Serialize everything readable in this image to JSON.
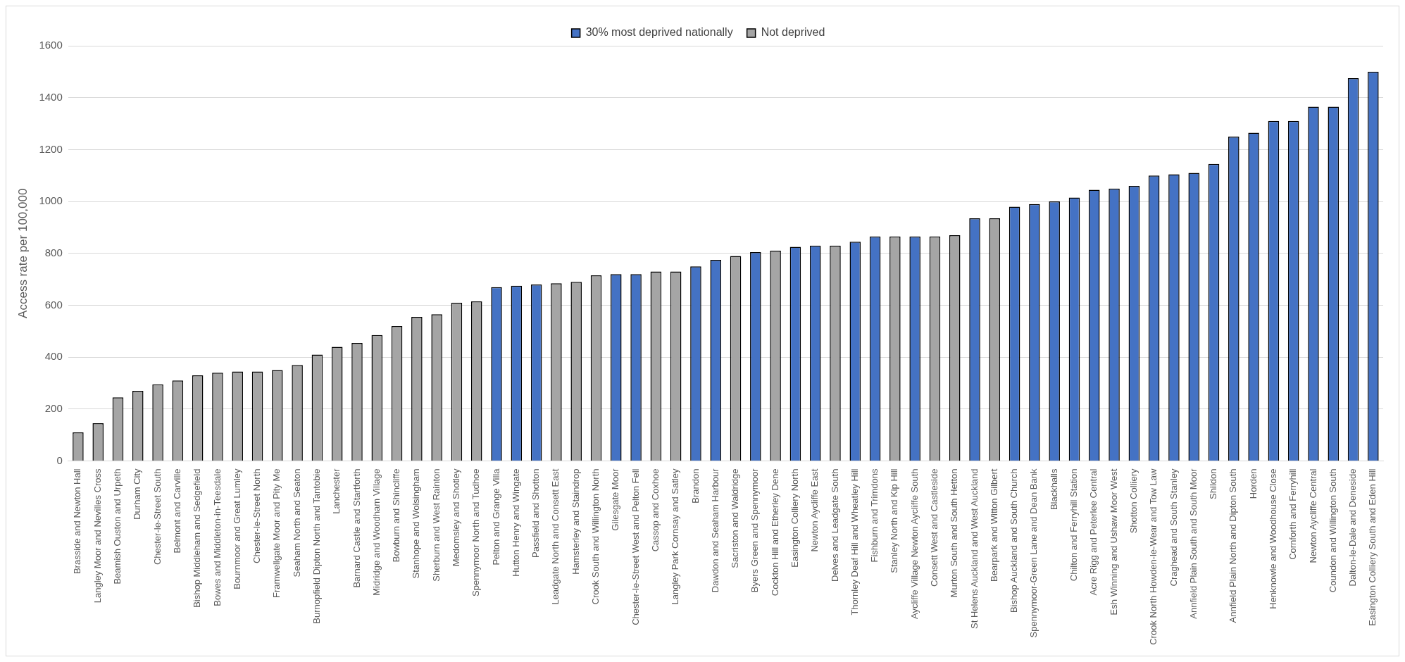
{
  "chart_data": {
    "type": "bar",
    "ylabel": "Access rate per 100,000",
    "categories": [
      "Brasside and Newton Hall",
      "Langley Moor and Nevilles Cross",
      "Beamish Ouston and Urpeth",
      "Durham City",
      "Chester-le-Street South",
      "Belmont and Carville",
      "Bishop Middleham and Sedgefield",
      "Bowes and Middleton-in-Teesdale",
      "Bournmoor and Great Lumley",
      "Chester-le-Street North",
      "Framwellgate Moor and Pity Me",
      "Seaham North and Seaton",
      "Burnopfield Dipton North and Tantobie",
      "Lanchester",
      "Barnard Castle and Startforth",
      "Midridge and Woodham Village",
      "Bowburn and Shincliffe",
      "Stanhope and Wolsingham",
      "Sherburn and West Rainton",
      "Medomsley and Shotley",
      "Spennymoor North and Tudhoe",
      "Pelton and Grange Villa",
      "Hutton Henry and Wingate",
      "Passfield and Shotton",
      "Leadgate North and Consett East",
      "Hamsterley and Staindrop",
      "Crook South and Willington North",
      "Gilesgate Moor",
      "Chester-le-Street West and Pelton Fell",
      "Cassop and Coxhoe",
      "Langley Park Cornsay and Satley",
      "Brandon",
      "Dawdon and Seaham Harbour",
      "Sacriston and Waldridge",
      "Byers Green and Spennymoor",
      "Cockton Hill and Etherley Dene",
      "Easington Colliery North",
      "Newton Aycliffe East",
      "Delves and Leadgate South",
      "Thornley Deaf Hill and Wheatley Hill",
      "Fishburn and Trimdons",
      "Stanley North and Kip Hill",
      "Aycliffe Village Newton Aycliffe South",
      "Consett West and Castleside",
      "Murton South and South Hetton",
      "St Helens Auckland and West Auckland",
      "Bearpark and Witton Gilbert",
      "Bishop Auckland and South Church",
      "Spennymoor-Green Lane and Dean Bank",
      "Blackhalls",
      "Chilton and Ferryhill Station",
      "Acre Rigg and Peterlee Central",
      "Esh Winning and Ushaw Moor West",
      "Shotton Colliery",
      "Crook North Howden-le-Wear and Tow Law",
      "Craghead and South Stanley",
      "Annfield Plain South and South Moor",
      "Shildon",
      "Annfield Plain North and Dipton South",
      "Horden",
      "Henknowle and Woodhouse Close",
      "Cornforth and Ferryhill",
      "Newton Aycliffe Central",
      "Coundon and Willington South",
      "Dalton-le-Dale and Deneside",
      "Easington Colliery South and Eden Hill"
    ],
    "series": [
      {
        "name": "30% most deprived nationally",
        "color": "#4472c4",
        "values": [
          null,
          null,
          null,
          null,
          null,
          null,
          null,
          null,
          null,
          null,
          null,
          null,
          null,
          null,
          null,
          null,
          null,
          null,
          null,
          null,
          null,
          670,
          675,
          680,
          null,
          null,
          null,
          720,
          720,
          null,
          null,
          750,
          775,
          null,
          805,
          null,
          825,
          830,
          null,
          845,
          865,
          null,
          865,
          null,
          null,
          935,
          null,
          980,
          990,
          1000,
          1015,
          1045,
          1050,
          1060,
          1100,
          1105,
          1110,
          1145,
          1250,
          1265,
          1310,
          1310,
          1365,
          1365,
          1475,
          1500
        ]
      },
      {
        "name": "Not deprived",
        "color": "#a5a5a5",
        "values": [
          110,
          145,
          245,
          270,
          295,
          310,
          330,
          340,
          345,
          345,
          350,
          370,
          410,
          440,
          455,
          485,
          520,
          555,
          565,
          610,
          615,
          null,
          null,
          null,
          685,
          690,
          715,
          null,
          null,
          730,
          730,
          null,
          null,
          790,
          null,
          810,
          null,
          null,
          830,
          null,
          null,
          865,
          null,
          865,
          870,
          null,
          935,
          null,
          null,
          null,
          null,
          null,
          null,
          null,
          null,
          null,
          null,
          null,
          null,
          null,
          null,
          null,
          null,
          null,
          null,
          null
        ]
      }
    ],
    "ylim": [
      0,
      1600
    ],
    "yticks": [
      0,
      200,
      400,
      600,
      800,
      1000,
      1200,
      1400,
      1600
    ],
    "grid": "y",
    "legend": "top"
  }
}
